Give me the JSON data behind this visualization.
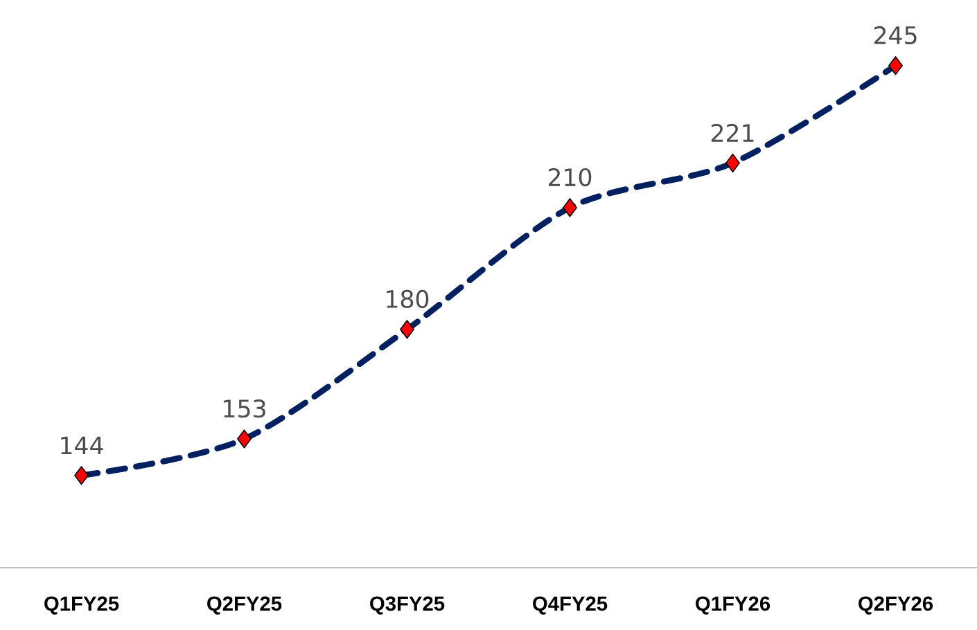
{
  "chart_data": {
    "type": "line",
    "categories": [
      "Q1FY25",
      "Q2FY25",
      "Q3FY25",
      "Q4FY25",
      "Q1FY26",
      "Q2FY26"
    ],
    "series": [
      {
        "color": "#002060",
        "values": [
          144,
          153,
          180,
          210,
          221,
          245
        ]
      }
    ],
    "marker": "diamond",
    "line_style": "dashed",
    "data_labels": true
  }
}
